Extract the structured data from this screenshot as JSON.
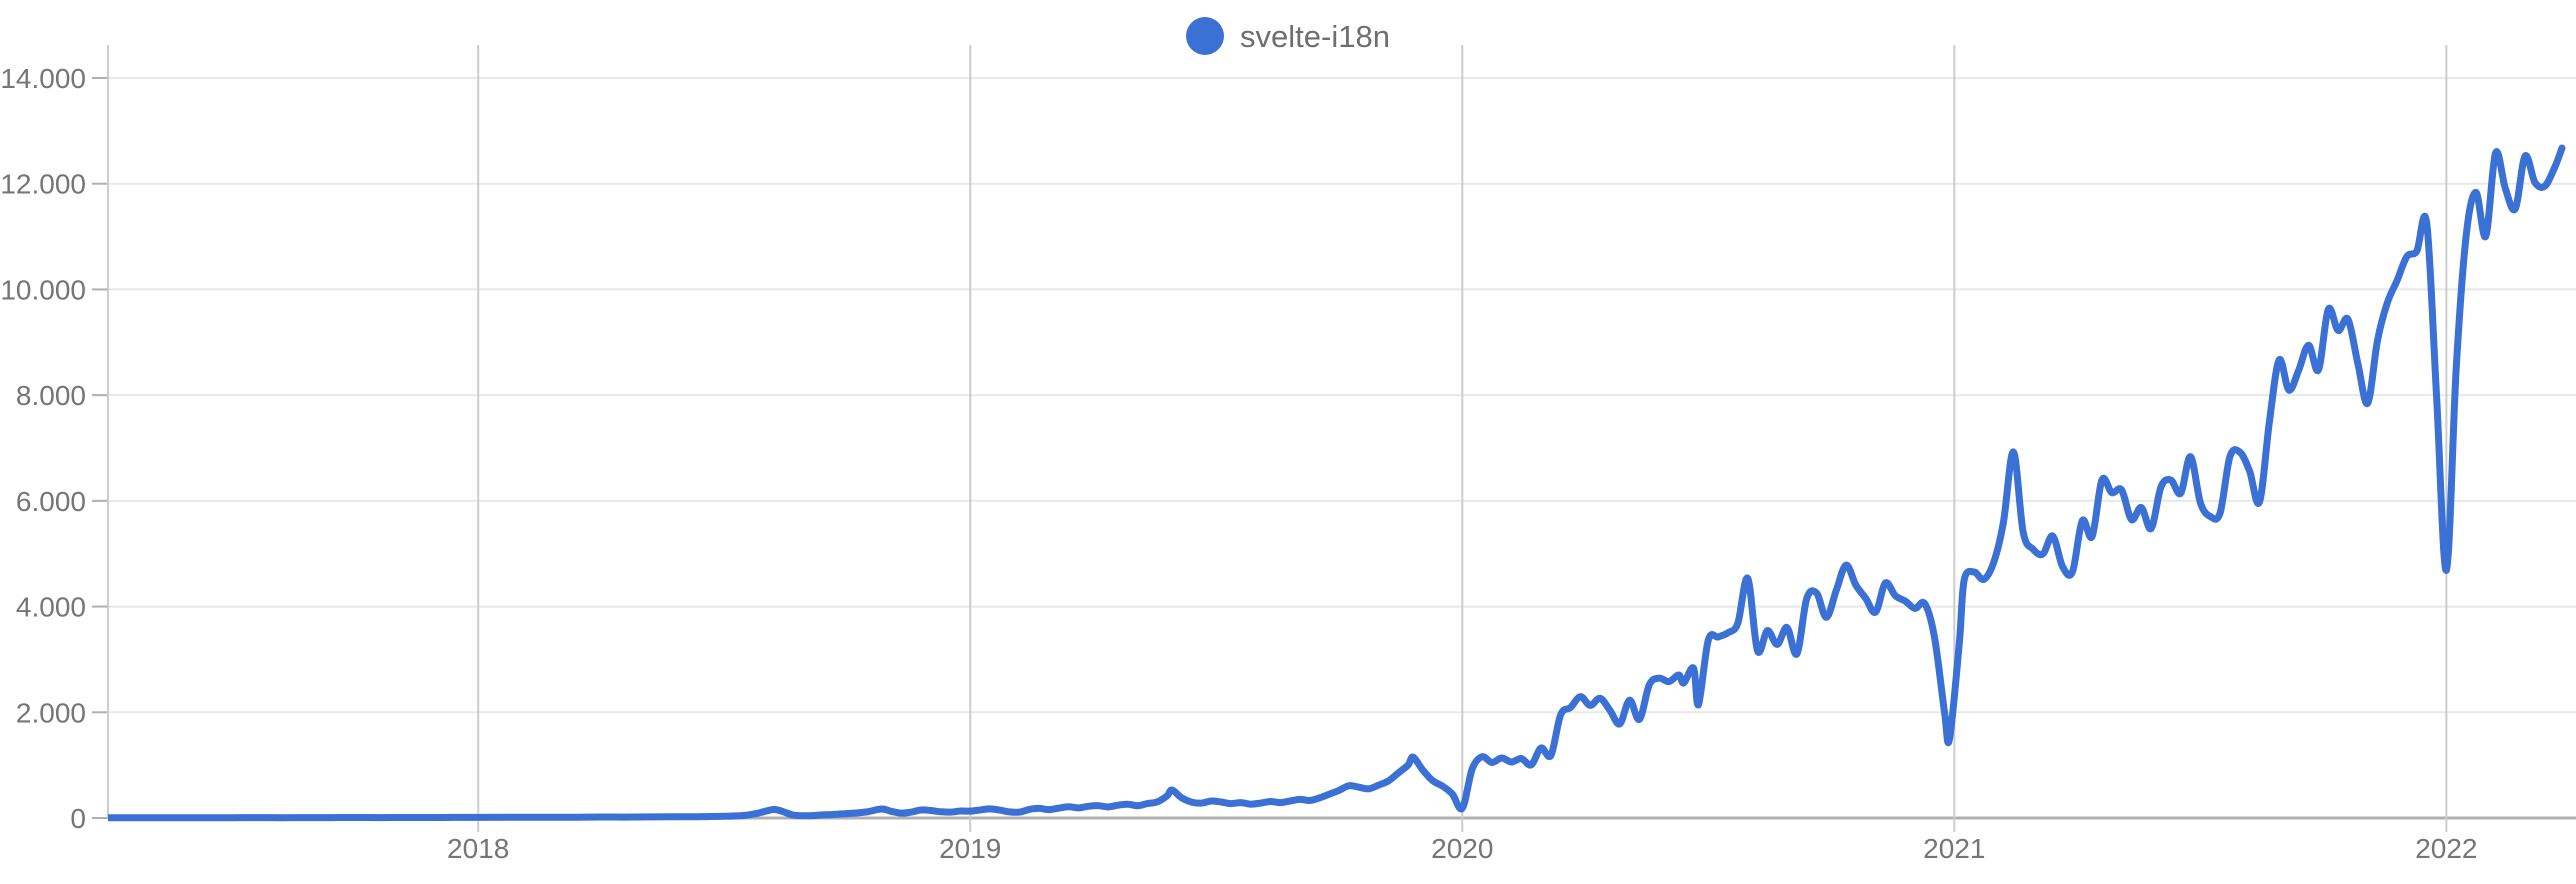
{
  "legend": {
    "items": [
      {
        "label": "svelte-i18n",
        "color": "#3b70d5"
      }
    ]
  },
  "colors": {
    "line": "#3b70d5",
    "grid_horizontal": "#e8e8e8",
    "grid_vertical": "#cccccc",
    "axis_baseline": "#b0b0b0",
    "tick_stub": "#b0b0b0",
    "axis_text": "#757575"
  },
  "chart_data": {
    "type": "line",
    "title": "",
    "xlabel": "",
    "ylabel": "",
    "legend_position": "top-center",
    "grid": true,
    "x_range": [
      2017.2476,
      2022.235
    ],
    "y_range": [
      0,
      14000
    ],
    "y_ticks": [
      {
        "value": 14000,
        "label": "14.000"
      },
      {
        "value": 12000,
        "label": "12.000"
      },
      {
        "value": 10000,
        "label": "10.000"
      },
      {
        "value": 8000,
        "label": "8.000"
      },
      {
        "value": 6000,
        "label": "6.000"
      },
      {
        "value": 4000,
        "label": "4.000"
      },
      {
        "value": 2000,
        "label": "2.000"
      },
      {
        "value": 0,
        "label": "0"
      }
    ],
    "x_ticks": [
      {
        "value": 2018,
        "label": "2018"
      },
      {
        "value": 2019,
        "label": "2019"
      },
      {
        "value": 2020,
        "label": "2020"
      },
      {
        "value": 2021,
        "label": "2021"
      },
      {
        "value": 2022,
        "label": "2022"
      }
    ],
    "series": [
      {
        "name": "svelte-i18n",
        "color": "#3b70d5",
        "points": [
          [
            2017.25,
            4
          ],
          [
            2017.3,
            5
          ],
          [
            2017.35,
            4
          ],
          [
            2017.4,
            6
          ],
          [
            2017.45,
            5
          ],
          [
            2017.5,
            6
          ],
          [
            2017.55,
            7
          ],
          [
            2017.6,
            6
          ],
          [
            2017.65,
            8
          ],
          [
            2017.7,
            7
          ],
          [
            2017.75,
            9
          ],
          [
            2017.8,
            8
          ],
          [
            2017.85,
            10
          ],
          [
            2017.9,
            9
          ],
          [
            2017.95,
            11
          ],
          [
            2018,
            12
          ],
          [
            2018.05,
            13
          ],
          [
            2018.1,
            14
          ],
          [
            2018.15,
            15
          ],
          [
            2018.2,
            16
          ],
          [
            2018.25,
            18
          ],
          [
            2018.3,
            17
          ],
          [
            2018.35,
            20
          ],
          [
            2018.4,
            22
          ],
          [
            2018.45,
            25
          ],
          [
            2018.5,
            32
          ],
          [
            2018.54,
            48
          ],
          [
            2018.57,
            95
          ],
          [
            2018.6,
            160
          ],
          [
            2018.62,
            120
          ],
          [
            2018.64,
            55
          ],
          [
            2018.67,
            42
          ],
          [
            2018.7,
            58
          ],
          [
            2018.73,
            72
          ],
          [
            2018.76,
            88
          ],
          [
            2018.79,
            115
          ],
          [
            2018.82,
            170
          ],
          [
            2018.84,
            125
          ],
          [
            2018.86,
            92
          ],
          [
            2018.88,
            112
          ],
          [
            2018.9,
            152
          ],
          [
            2018.92,
            142
          ],
          [
            2018.94,
            118
          ],
          [
            2018.96,
            112
          ],
          [
            2018.98,
            132
          ],
          [
            2019,
            130
          ],
          [
            2019.02,
            152
          ],
          [
            2019.04,
            172
          ],
          [
            2019.06,
            150
          ],
          [
            2019.08,
            115
          ],
          [
            2019.1,
            112
          ],
          [
            2019.12,
            162
          ],
          [
            2019.14,
            182
          ],
          [
            2019.16,
            158
          ],
          [
            2019.18,
            188
          ],
          [
            2019.2,
            212
          ],
          [
            2019.22,
            192
          ],
          [
            2019.24,
            222
          ],
          [
            2019.26,
            235
          ],
          [
            2019.28,
            210
          ],
          [
            2019.3,
            242
          ],
          [
            2019.32,
            262
          ],
          [
            2019.34,
            232
          ],
          [
            2019.36,
            272
          ],
          [
            2019.38,
            305
          ],
          [
            2019.4,
            420
          ],
          [
            2019.41,
            530
          ],
          [
            2019.43,
            380
          ],
          [
            2019.45,
            300
          ],
          [
            2019.47,
            282
          ],
          [
            2019.49,
            322
          ],
          [
            2019.51,
            302
          ],
          [
            2019.53,
            272
          ],
          [
            2019.55,
            292
          ],
          [
            2019.57,
            262
          ],
          [
            2019.59,
            282
          ],
          [
            2019.61,
            312
          ],
          [
            2019.63,
            292
          ],
          [
            2019.65,
            322
          ],
          [
            2019.67,
            352
          ],
          [
            2019.69,
            332
          ],
          [
            2019.71,
            382
          ],
          [
            2019.73,
            452
          ],
          [
            2019.75,
            525
          ],
          [
            2019.77,
            612
          ],
          [
            2019.79,
            582
          ],
          [
            2019.81,
            552
          ],
          [
            2019.83,
            622
          ],
          [
            2019.85,
            702
          ],
          [
            2019.87,
            852
          ],
          [
            2019.89,
            1005
          ],
          [
            2019.9,
            1150
          ],
          [
            2019.92,
            905
          ],
          [
            2019.94,
            705
          ],
          [
            2019.96,
            602
          ],
          [
            2019.98,
            452
          ],
          [
            2020,
            185
          ],
          [
            2020.02,
            925
          ],
          [
            2020.04,
            1160
          ],
          [
            2020.06,
            1050
          ],
          [
            2020.08,
            1135
          ],
          [
            2020.1,
            1060
          ],
          [
            2020.12,
            1125
          ],
          [
            2020.14,
            1005
          ],
          [
            2020.16,
            1325
          ],
          [
            2020.18,
            1185
          ],
          [
            2020.2,
            1955
          ],
          [
            2020.22,
            2090
          ],
          [
            2020.24,
            2295
          ],
          [
            2020.26,
            2130
          ],
          [
            2020.28,
            2265
          ],
          [
            2020.3,
            2040
          ],
          [
            2020.32,
            1780
          ],
          [
            2020.34,
            2230
          ],
          [
            2020.36,
            1865
          ],
          [
            2020.38,
            2520
          ],
          [
            2020.4,
            2645
          ],
          [
            2020.42,
            2580
          ],
          [
            2020.44,
            2705
          ],
          [
            2020.45,
            2555
          ],
          [
            2020.47,
            2835
          ],
          [
            2020.48,
            2145
          ],
          [
            2020.5,
            3365
          ],
          [
            2020.52,
            3425
          ],
          [
            2020.54,
            3505
          ],
          [
            2020.56,
            3685
          ],
          [
            2020.58,
            4535
          ],
          [
            2020.6,
            3165
          ],
          [
            2020.62,
            3545
          ],
          [
            2020.64,
            3285
          ],
          [
            2020.66,
            3605
          ],
          [
            2020.68,
            3105
          ],
          [
            2020.7,
            4150
          ],
          [
            2020.72,
            4255
          ],
          [
            2020.74,
            3795
          ],
          [
            2020.76,
            4305
          ],
          [
            2020.78,
            4785
          ],
          [
            2020.8,
            4405
          ],
          [
            2020.82,
            4155
          ],
          [
            2020.84,
            3895
          ],
          [
            2020.86,
            4445
          ],
          [
            2020.88,
            4205
          ],
          [
            2020.9,
            4105
          ],
          [
            2020.92,
            3965
          ],
          [
            2020.94,
            4055
          ],
          [
            2020.96,
            3405
          ],
          [
            2020.98,
            2005
          ],
          [
            2020.99,
            1485
          ],
          [
            2021.01,
            3305
          ],
          [
            2021.02,
            4505
          ],
          [
            2021.04,
            4655
          ],
          [
            2021.06,
            4515
          ],
          [
            2021.08,
            4835
          ],
          [
            2021.1,
            5605
          ],
          [
            2021.12,
            6925
          ],
          [
            2021.14,
            5405
          ],
          [
            2021.16,
            5085
          ],
          [
            2021.18,
            4995
          ],
          [
            2021.2,
            5335
          ],
          [
            2021.22,
            4755
          ],
          [
            2021.24,
            4655
          ],
          [
            2021.26,
            5625
          ],
          [
            2021.28,
            5325
          ],
          [
            2021.3,
            6395
          ],
          [
            2021.32,
            6155
          ],
          [
            2021.34,
            6205
          ],
          [
            2021.36,
            5645
          ],
          [
            2021.38,
            5875
          ],
          [
            2021.4,
            5475
          ],
          [
            2021.42,
            6265
          ],
          [
            2021.44,
            6395
          ],
          [
            2021.46,
            6145
          ],
          [
            2021.48,
            6835
          ],
          [
            2021.5,
            5965
          ],
          [
            2021.52,
            5705
          ],
          [
            2021.54,
            5765
          ],
          [
            2021.56,
            6835
          ],
          [
            2021.58,
            6925
          ],
          [
            2021.6,
            6565
          ],
          [
            2021.62,
            5975
          ],
          [
            2021.64,
            7465
          ],
          [
            2021.66,
            8665
          ],
          [
            2021.68,
            8095
          ],
          [
            2021.7,
            8475
          ],
          [
            2021.72,
            8945
          ],
          [
            2021.74,
            8475
          ],
          [
            2021.76,
            9625
          ],
          [
            2021.78,
            9225
          ],
          [
            2021.8,
            9435
          ],
          [
            2021.82,
            8605
          ],
          [
            2021.84,
            7845
          ],
          [
            2021.86,
            9035
          ],
          [
            2021.88,
            9745
          ],
          [
            2021.9,
            10175
          ],
          [
            2021.92,
            10625
          ],
          [
            2021.94,
            10725
          ],
          [
            2021.96,
            11255
          ],
          [
            2021.98,
            8005
          ],
          [
            2022,
            4685
          ],
          [
            2022.02,
            8505
          ],
          [
            2022.04,
            11005
          ],
          [
            2022.06,
            11835
          ],
          [
            2022.08,
            11005
          ],
          [
            2022.1,
            12585
          ],
          [
            2022.12,
            11905
          ],
          [
            2022.14,
            11525
          ],
          [
            2022.16,
            12525
          ],
          [
            2022.18,
            12025
          ],
          [
            2022.2,
            11955
          ],
          [
            2022.22,
            12305
          ],
          [
            2022.235,
            12675
          ]
        ]
      }
    ]
  }
}
